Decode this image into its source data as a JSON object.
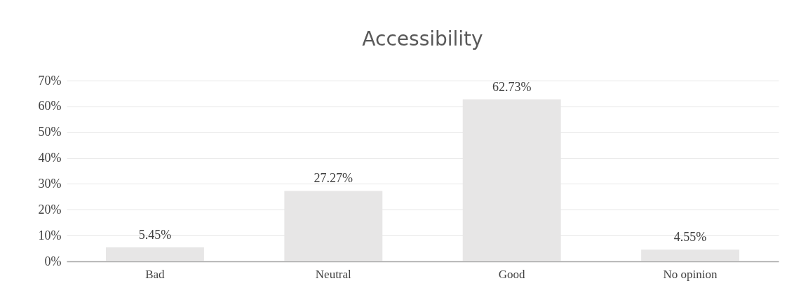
{
  "chart_data": {
    "type": "bar",
    "title": "Accessibility",
    "categories": [
      "Bad",
      "Neutral",
      "Good",
      "No opinion"
    ],
    "values": [
      5.45,
      27.27,
      62.73,
      4.55
    ],
    "value_labels": [
      "5.45%",
      "27.27%",
      "62.73%",
      "4.55%"
    ],
    "color": "#e7e6e6",
    "ylim": [
      0,
      70
    ],
    "yticks": [
      {
        "value": 0,
        "label": "0%"
      },
      {
        "value": 10,
        "label": "10%"
      },
      {
        "value": 20,
        "label": "20%"
      },
      {
        "value": 30,
        "label": "30%"
      },
      {
        "value": 40,
        "label": "40%"
      },
      {
        "value": 50,
        "label": "50%"
      },
      {
        "value": 60,
        "label": "60%"
      },
      {
        "value": 70,
        "label": "70%"
      }
    ],
    "grid": true
  }
}
